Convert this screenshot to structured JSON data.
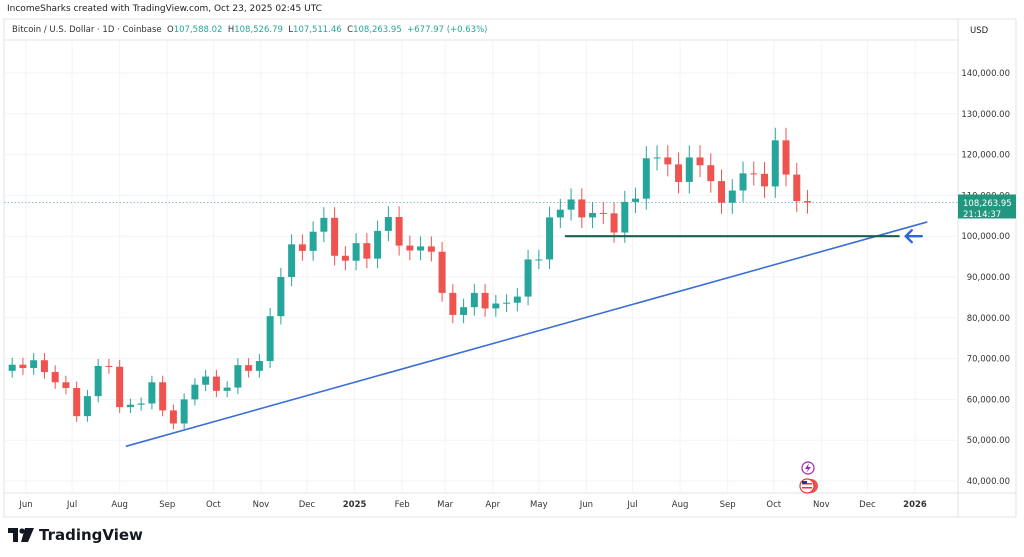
{
  "header": {
    "credit": "IncomeSharks created with TradingView.com, Oct 23, 2025 02:45 UTC",
    "symbol": "Bitcoin / U.S. Dollar · 1D · Coinbase",
    "open_label": "O",
    "open": "107,588.02",
    "high_label": "H",
    "high": "108,526.79",
    "low_label": "L",
    "low": "107,511.46",
    "close_label": "C",
    "close": "108,263.95",
    "change": "+677.97 (+0.63%)",
    "currency": "USD"
  },
  "price_tag": {
    "price": "108,263.95",
    "countdown": "21:14:37",
    "color": "#22977f"
  },
  "footer": {
    "logo_text": "TradingView"
  },
  "colors": {
    "up": "#26a69a",
    "down": "#ef5350",
    "trendline": "#3b6fd6",
    "support": "#1e5e50",
    "arrow": "#2f63d9"
  },
  "chart_data": {
    "type": "candlestick",
    "interval_note": "weekly approximation of daily candles",
    "ylim": [
      36000,
      150000
    ],
    "y_ticks": [
      "140,000.00",
      "130,000.00",
      "120,000.00",
      "110,000.00",
      "100,000.00",
      "90,000.00",
      "80,000.00",
      "70,000.00",
      "60,000.00",
      "50,000.00",
      "40,000.00"
    ],
    "x_ticks": [
      {
        "label": "Jun",
        "date": "2024-06-01"
      },
      {
        "label": "Jul",
        "date": "2024-07-01"
      },
      {
        "label": "Aug",
        "date": "2024-08-01"
      },
      {
        "label": "Sep",
        "date": "2024-09-01"
      },
      {
        "label": "Oct",
        "date": "2024-10-01"
      },
      {
        "label": "Nov",
        "date": "2024-11-01"
      },
      {
        "label": "Dec",
        "date": "2024-12-01"
      },
      {
        "label": "2025",
        "date": "2025-01-01",
        "bold": true
      },
      {
        "label": "Feb",
        "date": "2025-02-01"
      },
      {
        "label": "Mar",
        "date": "2025-03-01"
      },
      {
        "label": "Apr",
        "date": "2025-04-01"
      },
      {
        "label": "May",
        "date": "2025-05-01"
      },
      {
        "label": "Jun",
        "date": "2025-06-01"
      },
      {
        "label": "Jul",
        "date": "2025-07-01"
      },
      {
        "label": "Aug",
        "date": "2025-08-01"
      },
      {
        "label": "Sep",
        "date": "2025-09-01"
      },
      {
        "label": "Oct",
        "date": "2025-10-01"
      },
      {
        "label": "Nov",
        "date": "2025-11-01"
      },
      {
        "label": "Dec",
        "date": "2025-12-01"
      },
      {
        "label": "2026",
        "date": "2026-01-01",
        "bold": true
      }
    ],
    "start_week": "2024-05-20",
    "first_open": 67000,
    "weekly_close": [
      68500,
      67700,
      69600,
      66700,
      64200,
      62800,
      55900,
      60800,
      68200,
      68000,
      58100,
      58700,
      59000,
      64200,
      57300,
      54100,
      60000,
      63600,
      65600,
      62100,
      62900,
      68400,
      67000,
      69400,
      80400,
      90000,
      98000,
      96400,
      101100,
      104500,
      95200,
      94000,
      98300,
      94500,
      101300,
      104700,
      97700,
      96500,
      97500,
      96200,
      86100,
      80700,
      82600,
      86100,
      82300,
      83500,
      83700,
      85200,
      94300,
      94300,
      104600,
      106500,
      109000,
      104600,
      105700,
      105600,
      100900,
      108400,
      109200,
      119100,
      119300,
      117600,
      113300,
      119300,
      117400,
      113500,
      108200,
      111200,
      115400,
      115300,
      112200,
      123500,
      115100,
      108600,
      108263.95
    ],
    "current_price": 108263.95,
    "drawings": {
      "trendline": {
        "from": {
          "date": "2024-08-05",
          "price": 48500
        },
        "to": {
          "date": "2026-01-09",
          "price": 103500
        }
      },
      "support_line": {
        "from": {
          "date": "2025-05-18",
          "price": 100000
        },
        "to": {
          "date": "2025-12-22",
          "price": 100000
        }
      },
      "arrow": {
        "date": "2025-12-26",
        "price": 100000,
        "direction": "left"
      }
    }
  }
}
